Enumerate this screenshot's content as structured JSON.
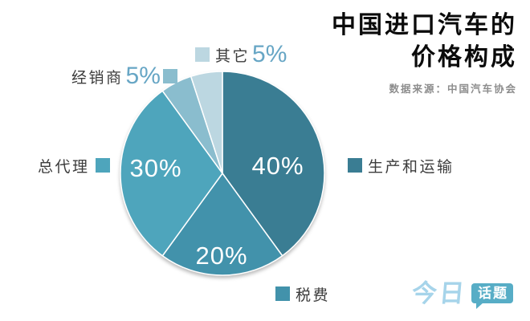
{
  "header": {
    "title_line1": "中国进口汽车的",
    "title_line2": "价格构成",
    "source": "数据来源：中国汽车协会"
  },
  "chart_data": {
    "type": "pie",
    "title": "中国进口汽车的价格构成",
    "source": "数据来源：中国汽车协会",
    "unit": "percent",
    "start_angle_deg": 0,
    "direction": "clockwise",
    "slices": [
      {
        "key": "production",
        "label": "生产和运输",
        "value": 40,
        "pct_label": "40%",
        "color": "#3A7D93",
        "label_side": "right"
      },
      {
        "key": "tax",
        "label": "税费",
        "value": 20,
        "pct_label": "20%",
        "color": "#4292AB",
        "label_side": "bottom"
      },
      {
        "key": "agent",
        "label": "总代理",
        "value": 30,
        "pct_label": "30%",
        "color": "#4EA5BC",
        "label_side": "left"
      },
      {
        "key": "dealer",
        "label": "经销商",
        "value": 5,
        "pct_label": "5%",
        "color": "#8ABDCE",
        "label_side": "top-left"
      },
      {
        "key": "other",
        "label": "其它",
        "value": 5,
        "pct_label": "5%",
        "color": "#BCD7E1",
        "label_side": "top"
      }
    ]
  },
  "logo": {
    "part1": "今日",
    "part2": "话题"
  },
  "colors": {
    "background": "#FFFFFF",
    "pct_callout_text": "#67A6C5",
    "label_text": "#3C3C3C",
    "title_text": "#0B0B0B",
    "source_text": "#8D8D8D",
    "logo_script": "#A6D4EA",
    "logo_badge": "#57ADC6"
  }
}
